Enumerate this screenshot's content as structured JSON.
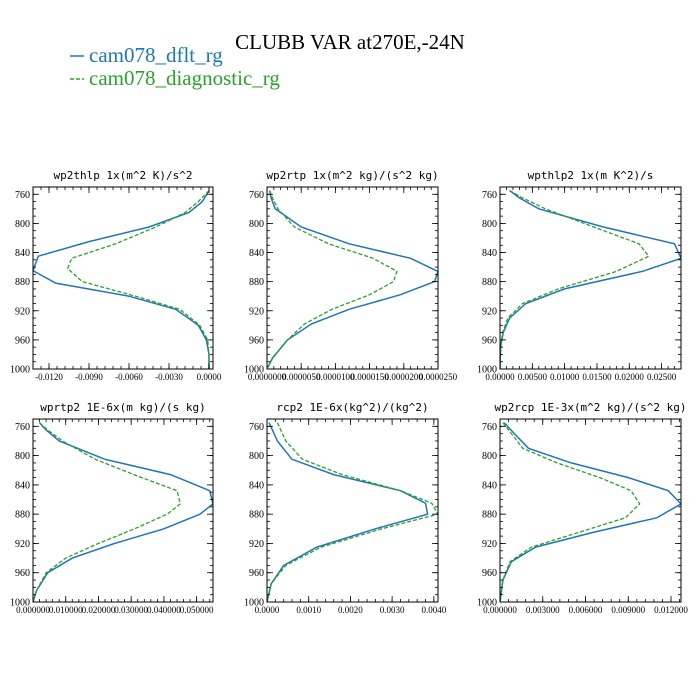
{
  "figure_title": "CLUBB VAR at270E,-24N",
  "legend": [
    {
      "label": "cam078_dflt_rg",
      "color": "#1f77b4",
      "dash": "solid"
    },
    {
      "label": "cam078_diagnostic_rg",
      "color": "#2ca02c",
      "dash": "dashed"
    }
  ],
  "chart_data": [
    {
      "type": "line",
      "title": "wp2thlp  1x(m^2 K)/s^2",
      "xlim": [
        -0.0132,
        0.0003
      ],
      "ylim": [
        1000,
        750
      ],
      "xticks": [
        "-0.0120",
        "-0.0090",
        "-0.0060",
        "-0.0030",
        "0.0000"
      ],
      "xtick_values": [
        -0.012,
        -0.009,
        -0.006,
        -0.003,
        0.0
      ],
      "yticks": [
        760,
        800,
        840,
        880,
        920,
        960,
        1000
      ],
      "series": [
        {
          "name": "cam078_dflt_rg",
          "points": [
            [
              0.0,
              755
            ],
            [
              -0.0005,
              770
            ],
            [
              -0.0015,
              785
            ],
            [
              -0.0045,
              805
            ],
            [
              -0.009,
              825
            ],
            [
              -0.0128,
              845
            ],
            [
              -0.0132,
              865
            ],
            [
              -0.0115,
              882
            ],
            [
              -0.006,
              900
            ],
            [
              -0.0025,
              918
            ],
            [
              -0.0008,
              940
            ],
            [
              -0.0002,
              960
            ],
            [
              0.0,
              980
            ],
            [
              0.0,
              1000
            ]
          ]
        },
        {
          "name": "cam078_diagnostic_rg",
          "points": [
            [
              0.0,
              755
            ],
            [
              -0.0008,
              770
            ],
            [
              -0.0018,
              785
            ],
            [
              -0.004,
              805
            ],
            [
              -0.007,
              828
            ],
            [
              -0.0103,
              848
            ],
            [
              -0.0106,
              862
            ],
            [
              -0.0095,
              880
            ],
            [
              -0.0055,
              900
            ],
            [
              -0.0022,
              918
            ],
            [
              -0.0007,
              940
            ],
            [
              -0.0001,
              960
            ],
            [
              0.0,
              980
            ],
            [
              0.0,
              1000
            ]
          ]
        }
      ]
    },
    {
      "type": "line",
      "title": "wp2rtp  1x(m^2 kg)/(s^2 kg)",
      "xlim": [
        0.0,
        2.5e-05
      ],
      "ylim": [
        1000,
        750
      ],
      "xticks": [
        "0.0000000",
        "0.0000050",
        "0.0000100",
        "0.0000150",
        "0.0000200",
        "0.0000250"
      ],
      "xtick_values": [
        0.0,
        5e-06,
        1e-05,
        1.5e-05,
        2e-05,
        2.5e-05
      ],
      "yticks": [
        760,
        800,
        840,
        880,
        920,
        960,
        1000
      ],
      "series": [
        {
          "name": "cam078_dflt_rg",
          "points": [
            [
              4e-07,
              755
            ],
            [
              6e-07,
              765
            ],
            [
              1.2e-06,
              780
            ],
            [
              5e-06,
              805
            ],
            [
              1.2e-05,
              828
            ],
            [
              2.1e-05,
              848
            ],
            [
              2.5e-05,
              866
            ],
            [
              2.45e-05,
              880
            ],
            [
              1.95e-05,
              898
            ],
            [
              1.2e-05,
              918
            ],
            [
              6.5e-06,
              938
            ],
            [
              3e-06,
              960
            ],
            [
              8e-07,
              985
            ],
            [
              1e-07,
              998
            ]
          ]
        },
        {
          "name": "cam078_diagnostic_rg",
          "points": [
            [
              4e-07,
              755
            ],
            [
              8e-07,
              765
            ],
            [
              1.6e-06,
              780
            ],
            [
              4e-06,
              805
            ],
            [
              9e-06,
              828
            ],
            [
              1.55e-05,
              848
            ],
            [
              1.9e-05,
              866
            ],
            [
              1.85e-05,
              880
            ],
            [
              1.5e-05,
              898
            ],
            [
              9.5e-06,
              918
            ],
            [
              5.5e-06,
              938
            ],
            [
              3e-06,
              960
            ],
            [
              8e-07,
              985
            ],
            [
              1e-07,
              998
            ]
          ]
        }
      ]
    },
    {
      "type": "line",
      "title": "wpthlp2  1x(m K^2)/s",
      "xlim": [
        0.0,
        0.028
      ],
      "ylim": [
        1000,
        750
      ],
      "xticks": [
        "0.00000",
        "0.00500",
        "0.01000",
        "0.01500",
        "0.02000",
        "0.02500"
      ],
      "xtick_values": [
        0.0,
        0.005,
        0.01,
        0.015,
        0.02,
        0.025
      ],
      "yticks": [
        760,
        800,
        840,
        880,
        920,
        960,
        1000
      ],
      "series": [
        {
          "name": "cam078_dflt_rg",
          "points": [
            [
              0.0015,
              755
            ],
            [
              0.003,
              765
            ],
            [
              0.006,
              780
            ],
            [
              0.016,
              805
            ],
            [
              0.027,
              828
            ],
            [
              0.028,
              848
            ],
            [
              0.022,
              866
            ],
            [
              0.01,
              890
            ],
            [
              0.004,
              910
            ],
            [
              0.0015,
              930
            ],
            [
              0.0005,
              950
            ],
            [
              0.0001,
              970
            ],
            [
              0.0,
              1000
            ]
          ]
        },
        {
          "name": "cam078_diagnostic_rg",
          "points": [
            [
              0.0015,
              755
            ],
            [
              0.0035,
              765
            ],
            [
              0.007,
              780
            ],
            [
              0.0145,
              805
            ],
            [
              0.0215,
              828
            ],
            [
              0.023,
              845
            ],
            [
              0.018,
              866
            ],
            [
              0.009,
              890
            ],
            [
              0.0035,
              910
            ],
            [
              0.0012,
              930
            ],
            [
              0.0004,
              950
            ],
            [
              0.0001,
              970
            ],
            [
              0.0,
              1000
            ]
          ]
        }
      ]
    },
    {
      "type": "line",
      "title": "wprtp2  1E-6x(m kg)/(s kg)",
      "xlim": [
        0.0,
        0.055
      ],
      "ylim": [
        1000,
        750
      ],
      "xticks": [
        "0.000000",
        "0.010000",
        "0.020000",
        "0.030000",
        "0.040000",
        "0.050000"
      ],
      "xtick_values": [
        0.0,
        0.01,
        0.02,
        0.03,
        0.04,
        0.05
      ],
      "yticks": [
        760,
        800,
        840,
        880,
        920,
        960,
        1000
      ],
      "series": [
        {
          "name": "cam078_dflt_rg",
          "points": [
            [
              0.002,
              755
            ],
            [
              0.004,
              765
            ],
            [
              0.008,
              780
            ],
            [
              0.022,
              805
            ],
            [
              0.042,
              826
            ],
            [
              0.054,
              848
            ],
            [
              0.055,
              866
            ],
            [
              0.051,
              880
            ],
            [
              0.04,
              900
            ],
            [
              0.025,
              920
            ],
            [
              0.012,
              940
            ],
            [
              0.0045,
              960
            ],
            [
              0.001,
              985
            ],
            [
              0.0,
              1000
            ]
          ]
        },
        {
          "name": "cam078_diagnostic_rg",
          "points": [
            [
              0.002,
              755
            ],
            [
              0.0045,
              765
            ],
            [
              0.009,
              780
            ],
            [
              0.019,
              805
            ],
            [
              0.032,
              828
            ],
            [
              0.044,
              848
            ],
            [
              0.045,
              866
            ],
            [
              0.041,
              880
            ],
            [
              0.031,
              900
            ],
            [
              0.02,
              920
            ],
            [
              0.01,
              940
            ],
            [
              0.004,
              960
            ],
            [
              0.001,
              985
            ],
            [
              0.0,
              1000
            ]
          ]
        }
      ]
    },
    {
      "type": "line",
      "title": "rcp2  1E-6x(kg^2)/(kg^2)",
      "xlim": [
        0.0,
        0.0041
      ],
      "ylim": [
        1000,
        750
      ],
      "xticks": [
        "0.0000",
        "0.0010",
        "0.0020",
        "0.0030",
        "0.0040"
      ],
      "xtick_values": [
        0.0,
        0.001,
        0.002,
        0.003,
        0.004
      ],
      "yticks": [
        760,
        800,
        840,
        880,
        920,
        960,
        1000
      ],
      "series": [
        {
          "name": "cam078_dflt_rg",
          "points": [
            [
              5e-05,
              755
            ],
            [
              0.00025,
              780
            ],
            [
              0.0006,
              805
            ],
            [
              0.0016,
              826
            ],
            [
              0.0032,
              848
            ],
            [
              0.0038,
              865
            ],
            [
              0.00385,
              880
            ],
            [
              0.0026,
              900
            ],
            [
              0.0012,
              925
            ],
            [
              0.0004,
              950
            ],
            [
              0.0001,
              975
            ],
            [
              0.0,
              1000
            ]
          ]
        },
        {
          "name": "cam078_diagnostic_rg",
          "points": [
            [
              0.00025,
              755
            ],
            [
              0.00045,
              780
            ],
            [
              0.00085,
              805
            ],
            [
              0.0018,
              826
            ],
            [
              0.0032,
              848
            ],
            [
              0.00395,
              865
            ],
            [
              0.0041,
              880
            ],
            [
              0.00275,
              900
            ],
            [
              0.0013,
              925
            ],
            [
              0.00045,
              950
            ],
            [
              0.0001,
              975
            ],
            [
              0.0,
              1000
            ]
          ]
        }
      ]
    },
    {
      "type": "line",
      "title": "wp2rcp  1E-3x(m^2 kg)/(s^2 kg)",
      "xlim": [
        0.0,
        0.0127
      ],
      "ylim": [
        1000,
        750
      ],
      "xticks": [
        "0.000000",
        "0.003000",
        "0.006000",
        "0.009000",
        "0.012000"
      ],
      "xtick_values": [
        0.0,
        0.003,
        0.006,
        0.009,
        0.012
      ],
      "yticks": [
        760,
        800,
        840,
        880,
        920,
        960,
        1000
      ],
      "series": [
        {
          "name": "cam078_dflt_rg",
          "points": [
            [
              0.0003,
              755
            ],
            [
              0.001,
              770
            ],
            [
              0.002,
              790
            ],
            [
              0.005,
              810
            ],
            [
              0.009,
              830
            ],
            [
              0.0118,
              848
            ],
            [
              0.0127,
              866
            ],
            [
              0.011,
              885
            ],
            [
              0.0065,
              905
            ],
            [
              0.0025,
              925
            ],
            [
              0.0008,
              945
            ],
            [
              0.0002,
              970
            ],
            [
              0.0,
              1000
            ]
          ]
        },
        {
          "name": "cam078_diagnostic_rg",
          "points": [
            [
              0.0002,
              755
            ],
            [
              0.0008,
              770
            ],
            [
              0.0016,
              790
            ],
            [
              0.004,
              810
            ],
            [
              0.007,
              830
            ],
            [
              0.0092,
              848
            ],
            [
              0.0098,
              866
            ],
            [
              0.0088,
              885
            ],
            [
              0.0055,
              905
            ],
            [
              0.0022,
              925
            ],
            [
              0.0007,
              945
            ],
            [
              0.0002,
              970
            ],
            [
              0.0,
              1000
            ]
          ]
        }
      ]
    }
  ]
}
